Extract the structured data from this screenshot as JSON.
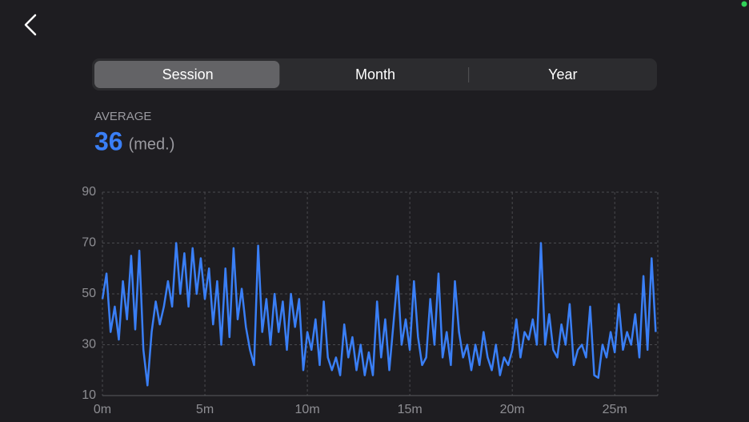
{
  "segments": [
    "Session",
    "Month",
    "Year"
  ],
  "selected_segment": 0,
  "average": {
    "label": "AVERAGE",
    "value": 36,
    "unit": "(med.)"
  },
  "chart_data": {
    "type": "line",
    "x": [
      0,
      0.2,
      0.4,
      0.6,
      0.8,
      1,
      1.2,
      1.4,
      1.6,
      1.8,
      2,
      2.2,
      2.4,
      2.6,
      2.8,
      3,
      3.2,
      3.4,
      3.6,
      3.8,
      4,
      4.2,
      4.4,
      4.6,
      4.8,
      5,
      5.2,
      5.4,
      5.6,
      5.8,
      6,
      6.2,
      6.4,
      6.6,
      6.8,
      7,
      7.2,
      7.4,
      7.6,
      7.8,
      8,
      8.2,
      8.4,
      8.6,
      8.8,
      9,
      9.2,
      9.4,
      9.6,
      9.8,
      10,
      10.2,
      10.4,
      10.6,
      10.8,
      11,
      11.2,
      11.4,
      11.6,
      11.8,
      12,
      12.2,
      12.4,
      12.6,
      12.8,
      13,
      13.2,
      13.4,
      13.6,
      13.8,
      14,
      14.2,
      14.4,
      14.6,
      14.8,
      15,
      15.2,
      15.4,
      15.6,
      15.8,
      16,
      16.2,
      16.4,
      16.6,
      16.8,
      17,
      17.2,
      17.4,
      17.6,
      17.8,
      18,
      18.2,
      18.4,
      18.6,
      18.8,
      19,
      19.2,
      19.4,
      19.6,
      19.8,
      20,
      20.2,
      20.4,
      20.6,
      20.8,
      21,
      21.2,
      21.4,
      21.6,
      21.8,
      22,
      22.2,
      22.4,
      22.6,
      22.8,
      23,
      23.2,
      23.4,
      23.6,
      23.8,
      24,
      24.2,
      24.4,
      24.6,
      24.8,
      25,
      25.2,
      25.4,
      25.6,
      25.8,
      26,
      26.2,
      26.4,
      26.6,
      26.8,
      27
    ],
    "series": [
      {
        "name": null,
        "color": "#3a7ff6",
        "values": [
          48,
          58,
          35,
          45,
          32,
          55,
          40,
          65,
          36,
          67,
          28,
          14,
          35,
          47,
          38,
          45,
          55,
          45,
          70,
          50,
          66,
          45,
          68,
          50,
          64,
          48,
          60,
          38,
          55,
          30,
          60,
          33,
          68,
          40,
          52,
          37,
          28,
          22,
          69,
          35,
          48,
          30,
          50,
          35,
          47,
          28,
          50,
          37,
          48,
          20,
          35,
          28,
          40,
          22,
          47,
          25,
          20,
          25,
          18,
          38,
          25,
          33,
          20,
          30,
          18,
          27,
          18,
          47,
          25,
          40,
          20,
          38,
          57,
          30,
          40,
          28,
          55,
          33,
          22,
          25,
          48,
          30,
          58,
          25,
          35,
          22,
          55,
          35,
          25,
          30,
          20,
          30,
          22,
          35,
          25,
          20,
          30,
          18,
          25,
          22,
          28,
          40,
          25,
          35,
          32,
          40,
          30,
          70,
          30,
          42,
          28,
          25,
          38,
          30,
          46,
          22,
          28,
          30,
          25,
          45,
          18,
          17,
          30,
          25,
          35,
          27,
          46,
          28,
          35,
          30,
          42,
          25,
          57,
          28,
          64,
          35
        ]
      }
    ],
    "xlim": [
      0,
      27.1
    ],
    "ylim": [
      10,
      90
    ],
    "xticks": [
      {
        "value": 0,
        "label": "0m"
      },
      {
        "value": 5,
        "label": "5m"
      },
      {
        "value": 10,
        "label": "10m"
      },
      {
        "value": 15,
        "label": "15m"
      },
      {
        "value": 20,
        "label": "20m"
      },
      {
        "value": 25,
        "label": "25m"
      }
    ],
    "yticks": [
      10,
      30,
      50,
      70,
      90
    ],
    "grid": true
  }
}
